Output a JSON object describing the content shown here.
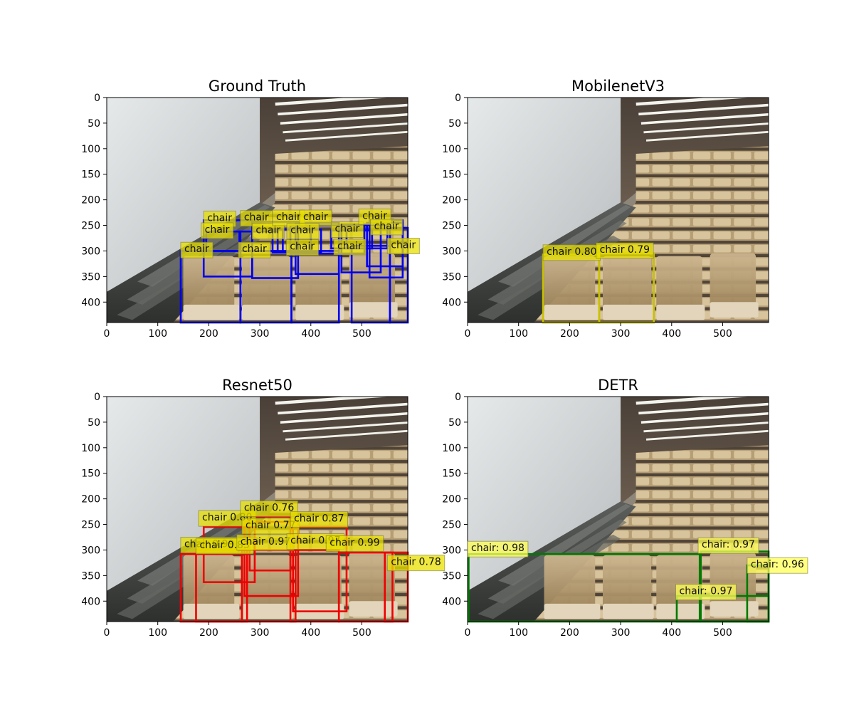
{
  "chart_data": [
    {
      "type": "image_detection",
      "title": "Ground Truth",
      "xlim": [
        0,
        590
      ],
      "ylim": [
        440,
        0
      ],
      "xticks": [
        0,
        100,
        200,
        300,
        400,
        500
      ],
      "yticks": [
        0,
        50,
        100,
        150,
        200,
        250,
        300,
        350,
        400
      ],
      "box_color": "#0000ee",
      "label_bg": "#e8e000",
      "boxes": [
        {
          "label": "chair",
          "x0": 145,
          "y0": 300,
          "x1": 262,
          "y1": 440
        },
        {
          "label": "chair",
          "x0": 262,
          "y0": 300,
          "x1": 362,
          "y1": 440
        },
        {
          "label": "chair",
          "x0": 362,
          "y0": 300,
          "x1": 455,
          "y1": 440
        },
        {
          "label": "chair",
          "x0": 480,
          "y0": 290,
          "x1": 555,
          "y1": 440
        },
        {
          "label": "chair",
          "x0": 555,
          "y0": 255,
          "x1": 590,
          "y1": 440
        },
        {
          "label": "chair",
          "x0": 190,
          "y0": 240,
          "x1": 285,
          "y1": 350
        },
        {
          "label": "chair",
          "x0": 285,
          "y0": 243,
          "x1": 375,
          "y1": 353
        },
        {
          "label": "chair",
          "x0": 370,
          "y0": 245,
          "x1": 455,
          "y1": 345
        },
        {
          "label": "chair",
          "x0": 460,
          "y0": 248,
          "x1": 537,
          "y1": 342
        },
        {
          "label": "chair",
          "x0": 515,
          "y0": 240,
          "x1": 580,
          "y1": 352
        },
        {
          "label": "chair",
          "x0": 195,
          "y0": 262,
          "x1": 262,
          "y1": 300
        },
        {
          "label": "chair",
          "x0": 260,
          "y0": 262,
          "x1": 335,
          "y1": 300
        },
        {
          "label": "chair",
          "x0": 325,
          "y0": 258,
          "x1": 400,
          "y1": 303
        },
        {
          "label": "chair",
          "x0": 345,
          "y0": 258,
          "x1": 420,
          "y1": 302
        },
        {
          "label": "chair",
          "x0": 360,
          "y0": 250,
          "x1": 505,
          "y1": 305
        },
        {
          "label": "chair",
          "x0": 440,
          "y0": 260,
          "x1": 520,
          "y1": 295
        },
        {
          "label": "chair",
          "x0": 470,
          "y0": 250,
          "x1": 550,
          "y1": 295
        },
        {
          "label": "chair",
          "x0": 510,
          "y0": 245,
          "x1": 580,
          "y1": 330
        }
      ],
      "labels": [
        {
          "text": "chair",
          "x": 145,
          "y": 283
        },
        {
          "text": "chair",
          "x": 190,
          "y": 222
        },
        {
          "text": "chair",
          "x": 185,
          "y": 245
        },
        {
          "text": "chair",
          "x": 262,
          "y": 221
        },
        {
          "text": "chair",
          "x": 285,
          "y": 246
        },
        {
          "text": "chair",
          "x": 325,
          "y": 220
        },
        {
          "text": "chair",
          "x": 378,
          "y": 220
        },
        {
          "text": "chair",
          "x": 353,
          "y": 246
        },
        {
          "text": "chair",
          "x": 258,
          "y": 283
        },
        {
          "text": "chair",
          "x": 352,
          "y": 278
        },
        {
          "text": "chair",
          "x": 440,
          "y": 243
        },
        {
          "text": "chair",
          "x": 494,
          "y": 218
        },
        {
          "text": "chair",
          "x": 517,
          "y": 238
        },
        {
          "text": "chair",
          "x": 445,
          "y": 277
        },
        {
          "text": "chair",
          "x": 550,
          "y": 275
        }
      ]
    },
    {
      "type": "image_detection",
      "title": "MobilenetV3",
      "xlim": [
        0,
        590
      ],
      "ylim": [
        440,
        0
      ],
      "xticks": [
        0,
        100,
        200,
        300,
        400,
        500
      ],
      "yticks": [
        0,
        50,
        100,
        150,
        200,
        250,
        300,
        350,
        400
      ],
      "box_color": "#c9c000",
      "label_bg": "#e8e000",
      "boxes": [
        {
          "label": "chair 0.80",
          "x0": 148,
          "y0": 307,
          "x1": 258,
          "y1": 440
        },
        {
          "label": "chair 0.79",
          "x0": 258,
          "y0": 305,
          "x1": 365,
          "y1": 440
        }
      ],
      "labels": [
        {
          "text": "chair 0.80",
          "x": 148,
          "y": 288
        },
        {
          "text": "chair 0.79",
          "x": 252,
          "y": 284
        }
      ]
    },
    {
      "type": "image_detection",
      "title": "Resnet50",
      "xlim": [
        0,
        590
      ],
      "ylim": [
        440,
        0
      ],
      "xticks": [
        0,
        100,
        200,
        300,
        400,
        500
      ],
      "yticks": [
        0,
        50,
        100,
        150,
        200,
        250,
        300,
        350,
        400
      ],
      "box_color": "#ee0000",
      "label_bg": "#e8e000",
      "boxes": [
        {
          "label": "chair 0.99",
          "x0": 145,
          "y0": 308,
          "x1": 265,
          "y1": 440
        },
        {
          "label": "chair 0.83",
          "x0": 175,
          "y0": 300,
          "x1": 275,
          "y1": 440
        },
        {
          "label": "chair 0.80",
          "x0": 190,
          "y0": 255,
          "x1": 290,
          "y1": 363
        },
        {
          "label": "chair 0.97",
          "x0": 265,
          "y0": 300,
          "x1": 370,
          "y1": 440
        },
        {
          "label": "chair 0.76",
          "x0": 280,
          "y0": 235,
          "x1": 360,
          "y1": 340
        },
        {
          "label": "chair 0.77",
          "x0": 270,
          "y0": 245,
          "x1": 375,
          "y1": 390
        },
        {
          "label": "chair 0.97",
          "x0": 360,
          "y0": 300,
          "x1": 455,
          "y1": 440
        },
        {
          "label": "chair 0.87",
          "x0": 365,
          "y0": 255,
          "x1": 470,
          "y1": 420
        },
        {
          "label": "chair 0.99",
          "x0": 455,
          "y0": 305,
          "x1": 560,
          "y1": 440
        },
        {
          "label": "chair 0.78",
          "x0": 545,
          "y0": 305,
          "x1": 590,
          "y1": 440
        }
      ],
      "labels": [
        {
          "text": "chair 0.99",
          "x": 145,
          "y": 275
        },
        {
          "text": "chair 0.83",
          "x": 175,
          "y": 277
        },
        {
          "text": "chair 0.80",
          "x": 180,
          "y": 223
        },
        {
          "text": "chair 0.76",
          "x": 262,
          "y": 204
        },
        {
          "text": "chair 0.77",
          "x": 265,
          "y": 238
        },
        {
          "text": "chair 0.97",
          "x": 255,
          "y": 270
        },
        {
          "text": "chair 0.87",
          "x": 360,
          "y": 225
        },
        {
          "text": "chair 0.97",
          "x": 353,
          "y": 268
        },
        {
          "text": "chair 0.99",
          "x": 430,
          "y": 272
        },
        {
          "text": "chair 0.78",
          "x": 550,
          "y": 310
        }
      ]
    },
    {
      "type": "image_detection",
      "title": "DETR",
      "xlim": [
        0,
        590
      ],
      "ylim": [
        440,
        0
      ],
      "xticks": [
        0,
        100,
        200,
        300,
        400,
        500
      ],
      "yticks": [
        0,
        50,
        100,
        150,
        200,
        250,
        300,
        350,
        400
      ],
      "box_color": "#007a00",
      "label_bg": "#ffff55",
      "boxes": [
        {
          "label": "chair: 0.98",
          "x0": 2,
          "y0": 308,
          "x1": 455,
          "y1": 440
        },
        {
          "label": "chair: 0.97",
          "x0": 410,
          "y0": 390,
          "x1": 590,
          "y1": 440
        },
        {
          "label": "chair: 0.97",
          "x0": 457,
          "y0": 303,
          "x1": 590,
          "y1": 440
        },
        {
          "label": "chair: 0.96",
          "x0": 548,
          "y0": 330,
          "x1": 590,
          "y1": 440
        }
      ],
      "labels": [
        {
          "text": "chair: 0.98",
          "x": 0,
          "y": 283
        },
        {
          "text": "chair: 0.97",
          "x": 452,
          "y": 276
        },
        {
          "text": "chair: 0.96",
          "x": 548,
          "y": 315
        },
        {
          "text": "chair: 0.97",
          "x": 408,
          "y": 367
        }
      ]
    }
  ]
}
